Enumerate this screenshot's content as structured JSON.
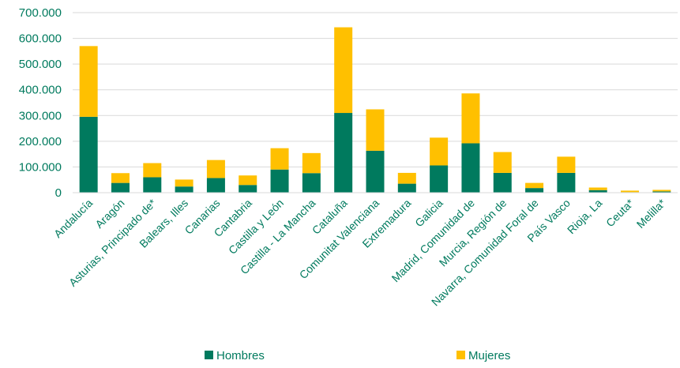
{
  "chart_data": {
    "type": "bar",
    "stacked": true,
    "categories": [
      "Andalucía",
      "Aragón",
      "Asturias, Principado de*",
      "Balears, Illes",
      "Canarias",
      "Cantabria",
      "Castilla y León",
      "Castilla - La Mancha",
      "Cataluña",
      "Comunitat Valenciana",
      "Extremadura",
      "Galicia",
      "Madrid, Comunidad de",
      "Murcia, Región de",
      "Navarra, Comunidad Foral de",
      "País Vasco",
      "Rioja, La",
      "Ceuta*",
      "Melilla*"
    ],
    "series": [
      {
        "name": "Hombres",
        "color": "#007A5E",
        "values": [
          295000,
          38000,
          60000,
          24000,
          57000,
          30000,
          90000,
          76000,
          310000,
          163000,
          35000,
          106000,
          192000,
          77000,
          18000,
          77000,
          10000,
          2000,
          5000
        ]
      },
      {
        "name": "Mujeres",
        "color": "#FFC000",
        "values": [
          275000,
          38000,
          55000,
          27000,
          70000,
          37000,
          83000,
          78000,
          333000,
          161000,
          42000,
          108000,
          194000,
          81000,
          20000,
          63000,
          10000,
          6000,
          6000
        ]
      }
    ],
    "yticks": [
      "0",
      "100.000",
      "200.000",
      "300.000",
      "400.000",
      "500.000",
      "600.000",
      "700.000"
    ],
    "ylim": [
      0,
      700000
    ],
    "grid": true,
    "legend_position": "bottom",
    "label_color": "#007A5E"
  }
}
